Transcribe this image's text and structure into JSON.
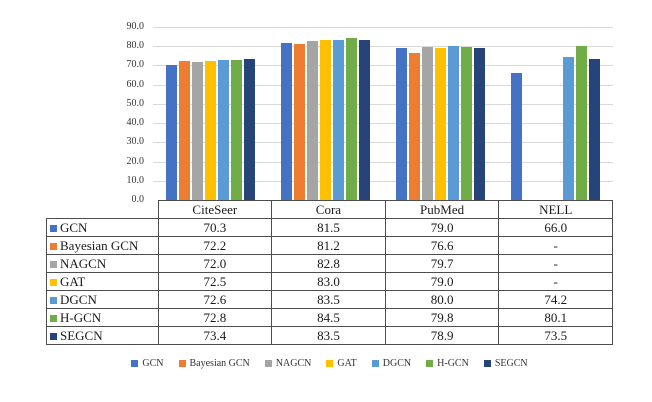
{
  "chart_data": {
    "type": "bar",
    "title": "",
    "xlabel": "",
    "ylabel": "",
    "categories": [
      "CiteSeer",
      "Cora",
      "PubMed",
      "NELL"
    ],
    "series": [
      {
        "name": "GCN",
        "color": "#4472C4",
        "values": [
          70.3,
          81.5,
          79.0,
          66.0
        ]
      },
      {
        "name": "Bayesian GCN",
        "color": "#ED7D31",
        "values": [
          72.2,
          81.2,
          76.6,
          null
        ]
      },
      {
        "name": "NAGCN",
        "color": "#A5A5A5",
        "values": [
          72.0,
          82.8,
          79.7,
          null
        ]
      },
      {
        "name": "GAT",
        "color": "#FFC000",
        "values": [
          72.5,
          83.0,
          79.0,
          null
        ]
      },
      {
        "name": "DGCN",
        "color": "#5B9BD5",
        "values": [
          72.6,
          83.5,
          80.0,
          74.2
        ]
      },
      {
        "name": "H-GCN",
        "color": "#70AD47",
        "values": [
          72.8,
          84.5,
          79.8,
          80.1
        ]
      },
      {
        "name": "SEGCN",
        "color": "#264478",
        "values": [
          73.4,
          83.5,
          78.9,
          73.5
        ]
      }
    ],
    "ylim": [
      0,
      90
    ],
    "ytick_step": 10,
    "ytick_labels": [
      "90.0",
      "80.0",
      "70.0",
      "60.0",
      "50.0",
      "40.0",
      "30.0",
      "20.0",
      "10.0",
      "0.0"
    ],
    "grid": true,
    "legend_position": "bottom",
    "legend_labels": [
      "GCN",
      "Bayesian GCN",
      "NAGCN",
      "GAT",
      "DGCN",
      "H-GCN",
      "SEGCN"
    ],
    "missing_value_label": "-",
    "value_decimals": 1,
    "gridline_color": "#D9D9D9",
    "table_border_color": "#4D4D4D"
  }
}
